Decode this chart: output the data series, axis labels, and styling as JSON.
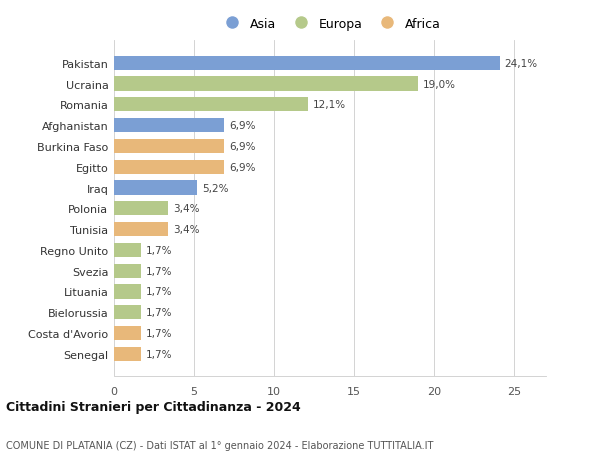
{
  "categories": [
    "Pakistan",
    "Ucraina",
    "Romania",
    "Afghanistan",
    "Burkina Faso",
    "Egitto",
    "Iraq",
    "Polonia",
    "Tunisia",
    "Regno Unito",
    "Svezia",
    "Lituania",
    "Bielorussia",
    "Costa d'Avorio",
    "Senegal"
  ],
  "values": [
    24.1,
    19.0,
    12.1,
    6.9,
    6.9,
    6.9,
    5.2,
    3.4,
    3.4,
    1.7,
    1.7,
    1.7,
    1.7,
    1.7,
    1.7
  ],
  "labels": [
    "24,1%",
    "19,0%",
    "12,1%",
    "6,9%",
    "6,9%",
    "6,9%",
    "5,2%",
    "3,4%",
    "3,4%",
    "1,7%",
    "1,7%",
    "1,7%",
    "1,7%",
    "1,7%",
    "1,7%"
  ],
  "continents": [
    "Asia",
    "Europa",
    "Europa",
    "Asia",
    "Africa",
    "Africa",
    "Asia",
    "Europa",
    "Africa",
    "Europa",
    "Europa",
    "Europa",
    "Europa",
    "Africa",
    "Africa"
  ],
  "colors": {
    "Asia": "#7b9fd4",
    "Europa": "#b5c98a",
    "Africa": "#e8b87a"
  },
  "legend_order": [
    "Asia",
    "Europa",
    "Africa"
  ],
  "title": "Cittadini Stranieri per Cittadinanza - 2024",
  "subtitle": "COMUNE DI PLATANIA (CZ) - Dati ISTAT al 1° gennaio 2024 - Elaborazione TUTTITALIA.IT",
  "xlim": [
    0,
    27
  ],
  "xticks": [
    0,
    5,
    10,
    15,
    20,
    25
  ],
  "background_color": "#ffffff",
  "bar_height": 0.68,
  "figsize": [
    6.0,
    4.6
  ],
  "dpi": 100
}
